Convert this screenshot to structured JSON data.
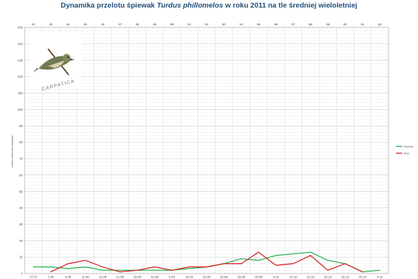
{
  "title_parts": {
    "before": "Dynamika przelotu śpiewak ",
    "italic": "Turdus phillomelos",
    "after": " w roku 2011 na tle średniej wieloletniej"
  },
  "logo_text": "CARPATICA",
  "colors": {
    "srednia": "#22b04a",
    "y2011": "#d42020",
    "grid": "#c9c9c9",
    "title": "#1f4e79"
  },
  "chart_data": {
    "type": "line",
    "title": "Dynamika przelotu śpiewak Turdus phillomelos w roku 2011 na tle średniej wieloletniej",
    "ylabel": "średnia osobników złapanych",
    "ylim": [
      0,
      150
    ],
    "yticks": [
      0,
      10,
      20,
      30,
      40,
      50,
      60,
      70,
      80,
      90,
      100,
      110,
      120,
      130,
      140,
      150
    ],
    "grid": true,
    "legend_position": "right",
    "weeks": [
      "42",
      "43",
      "44",
      "45",
      "46",
      "47",
      "48",
      "49",
      "50",
      "51",
      "52",
      "53",
      "54",
      "55",
      "56",
      "57",
      "58",
      "59",
      "60",
      "61",
      "62"
    ],
    "categories": [
      "27.07",
      "1.08",
      "6.08",
      "11.08",
      "16.08",
      "21.08",
      "26.08",
      "31.08",
      "5.09",
      "10.09",
      "15.09",
      "20.09",
      "25.09",
      "30.09",
      "5.10",
      "10.10",
      "15.10",
      "20.10",
      "25.10",
      "30.10",
      "4.11"
    ],
    "series": [
      {
        "name": "Średnia",
        "color": "#22b04a",
        "values": [
          4,
          4,
          3,
          4,
          2,
          2,
          2,
          2,
          2,
          3,
          4,
          6,
          9,
          8,
          11,
          12,
          13,
          8,
          6,
          1,
          2
        ]
      },
      {
        "name": "2011",
        "color": "#d42020",
        "values": [
          null,
          1,
          6,
          8,
          4,
          1,
          2,
          4,
          2,
          4,
          4,
          6,
          6,
          13,
          5,
          6,
          11,
          2,
          6,
          1,
          null
        ]
      }
    ]
  }
}
